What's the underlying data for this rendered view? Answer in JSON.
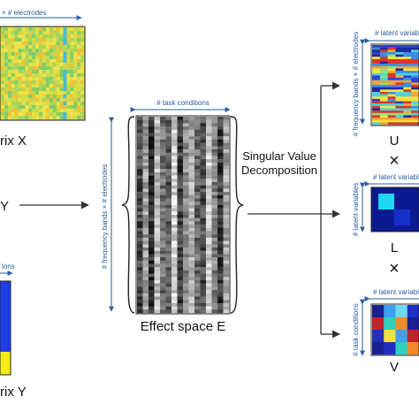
{
  "matrix_x": {
    "title": "rix X",
    "dim_top": "× # electrodes",
    "palette": [
      "#f0e24a",
      "#d9df45",
      "#a9d65a",
      "#7fcf6a",
      "#e9c43a",
      "#c8da4e",
      "#4fb8d0"
    ]
  },
  "y_fragment": "Y",
  "matrix_y": {
    "title": "rix Y",
    "dim_top": "ions",
    "colors": {
      "blue": "#1f3ee6",
      "yellow": "#f3ec1c"
    }
  },
  "effect_space": {
    "title": "Effect space E",
    "dim_top": "# task conditions",
    "dim_left": "# frequency bands × # electrodes",
    "gray_levels": [
      0.28,
      0.62,
      0.18,
      0.74,
      0.45,
      0.35,
      0.82,
      0.25,
      0.55,
      0.68,
      0.4,
      0.3,
      0.78,
      0.5,
      0.22,
      0.65
    ]
  },
  "svd": {
    "line1": "Singular Value",
    "line2": "Decomposition"
  },
  "matrix_u": {
    "label": "U",
    "dim_top": "# latent variables",
    "dim_left": "# frequency bands × # electrodes",
    "palette": [
      "#2c3fd4",
      "#3a8ee6",
      "#4fd0e0",
      "#f5e43a",
      "#f3a23a",
      "#d9382a",
      "#8fe07a",
      "#1f2a9a"
    ]
  },
  "times_1": "×",
  "matrix_l": {
    "label": "L",
    "dim_top": "# latent variable",
    "dim_left": "# latent variables",
    "colors": {
      "dark": "#0b1a8f",
      "cyan": "#20d8f0",
      "blue": "#1530c8"
    }
  },
  "times_2": "×",
  "matrix_v": {
    "label": "V",
    "dim_top": "# latent variable",
    "dim_left": "# task conditions",
    "colors": [
      "#1f2fbf",
      "#3fa0f0",
      "#f08a2a",
      "#c0222a",
      "#2fd0c0",
      "#f5e13a",
      "#1a1f8f",
      "#6fd7f0"
    ]
  },
  "icons": {
    "brace": "curly-brace-icon",
    "arrow": "arrow-right-icon"
  }
}
